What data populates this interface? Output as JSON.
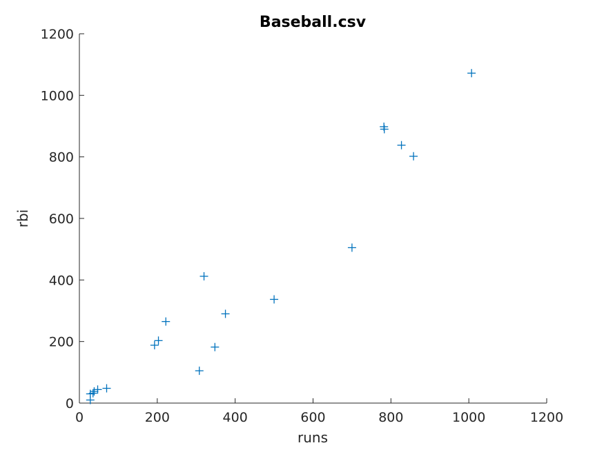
{
  "chart_data": {
    "type": "scatter",
    "title": "Baseball.csv",
    "xlabel": "runs",
    "ylabel": "rbi",
    "xlim": [
      0,
      1200
    ],
    "ylim": [
      0,
      1200
    ],
    "xticks": [
      0,
      200,
      400,
      600,
      800,
      1000,
      1200
    ],
    "yticks": [
      0,
      200,
      400,
      600,
      800,
      1000,
      1200
    ],
    "xtick_labels": [
      "0",
      "200",
      "400",
      "600",
      "800",
      "1000",
      "1200"
    ],
    "ytick_labels": [
      "0",
      "200",
      "400",
      "600",
      "800",
      "1000",
      "1200"
    ],
    "marker": "plus",
    "color": "#0072BD",
    "grid": false,
    "points": [
      {
        "x": 1007,
        "y": 1072
      },
      {
        "x": 782,
        "y": 898
      },
      {
        "x": 783,
        "y": 890
      },
      {
        "x": 827,
        "y": 838
      },
      {
        "x": 858,
        "y": 802
      },
      {
        "x": 700,
        "y": 505
      },
      {
        "x": 320,
        "y": 412
      },
      {
        "x": 500,
        "y": 337
      },
      {
        "x": 375,
        "y": 290
      },
      {
        "x": 222,
        "y": 265
      },
      {
        "x": 203,
        "y": 203
      },
      {
        "x": 193,
        "y": 188
      },
      {
        "x": 348,
        "y": 182
      },
      {
        "x": 308,
        "y": 105
      },
      {
        "x": 70,
        "y": 48
      },
      {
        "x": 47,
        "y": 44
      },
      {
        "x": 38,
        "y": 38
      },
      {
        "x": 35,
        "y": 32
      },
      {
        "x": 28,
        "y": 30
      },
      {
        "x": 28,
        "y": 10
      }
    ]
  }
}
